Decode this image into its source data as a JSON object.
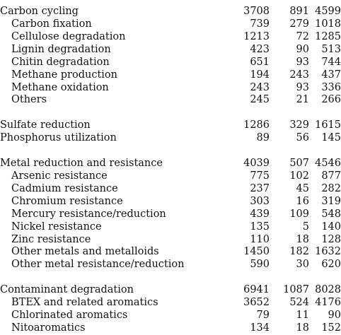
{
  "table": {
    "groups": [
      [
        {
          "label": "Carbon cycling",
          "values": [
            3708,
            891,
            4599
          ],
          "items": [
            {
              "label": "Carbon fixation",
              "values": [
                739,
                279,
                1018
              ]
            },
            {
              "label": "Cellulose degradation",
              "values": [
                1213,
                72,
                1285
              ]
            },
            {
              "label": "Lignin degradation",
              "values": [
                423,
                90,
                513
              ]
            },
            {
              "label": "Chitin degradation",
              "values": [
                651,
                93,
                744
              ]
            },
            {
              "label": "Methane production",
              "values": [
                194,
                243,
                437
              ]
            },
            {
              "label": "Methane oxidation",
              "values": [
                243,
                93,
                336
              ]
            },
            {
              "label": "Others",
              "values": [
                245,
                21,
                266
              ]
            }
          ]
        }
      ],
      [
        {
          "label": "Sulfate reduction",
          "values": [
            1286,
            329,
            1615
          ]
        },
        {
          "label": "Phosphorus utilization",
          "values": [
            89,
            56,
            145
          ]
        }
      ],
      [
        {
          "label": "Metal reduction and resistance",
          "values": [
            4039,
            507,
            4546
          ],
          "items": [
            {
              "label": "Arsenic resistance",
              "values": [
                775,
                102,
                877
              ]
            },
            {
              "label": "Cadmium resistance",
              "values": [
                237,
                45,
                282
              ]
            },
            {
              "label": "Chromium resistance",
              "values": [
                303,
                16,
                319
              ]
            },
            {
              "label": "Mercury resistance/reduction",
              "values": [
                439,
                109,
                548
              ]
            },
            {
              "label": "Nickel resistance",
              "values": [
                135,
                5,
                140
              ]
            },
            {
              "label": "Zinc resistance",
              "values": [
                110,
                18,
                128
              ]
            },
            {
              "label": "Other metals and metalloids",
              "values": [
                1450,
                182,
                1632
              ]
            },
            {
              "label": "Other metal resistance/reduction",
              "values": [
                590,
                30,
                620
              ]
            }
          ]
        }
      ],
      [
        {
          "label": "Contaminant degradation",
          "values": [
            6941,
            1087,
            8028
          ],
          "items": [
            {
              "label": "BTEX and related aromatics",
              "values": [
                3652,
                524,
                4176
              ]
            },
            {
              "label": "Chlorinated aromatics",
              "values": [
                79,
                11,
                90
              ]
            },
            {
              "label": "Nitoaromatics",
              "values": [
                134,
                18,
                152
              ]
            }
          ]
        }
      ]
    ]
  }
}
